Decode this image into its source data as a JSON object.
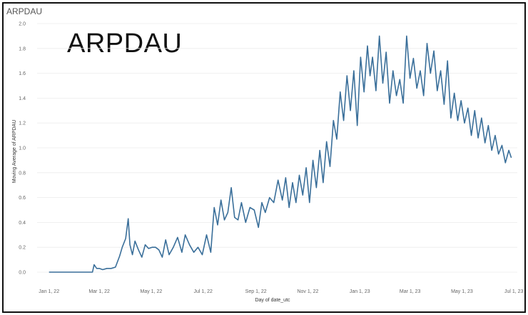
{
  "sheet": {
    "title": "ARPDAU"
  },
  "chart_data": {
    "type": "line",
    "title": "ARPDAU",
    "xlabel": "Day of date_utc",
    "ylabel": "Moving Average of ARPDAU",
    "x_ticks": [
      "Jan 1, 22",
      "Mar 1, 22",
      "May 1, 22",
      "Jul 1, 22",
      "Sep 1, 22",
      "Nov 1, 22",
      "Jan 1, 23",
      "Mar 1, 23",
      "May 1, 23",
      "Jul 1, 23"
    ],
    "y_ticks": [
      "0.0",
      "0.2",
      "0.4",
      "0.6",
      "0.8",
      "1.0",
      "1.2",
      "1.4",
      "1.6",
      "1.8",
      "2.0"
    ],
    "ylim": [
      0,
      2.0
    ],
    "xlim": [
      "2021-12-18",
      "2023-07-05"
    ],
    "grid": true,
    "legend": "none",
    "line_color": "#3a6f9a",
    "series": [
      {
        "x": [
          "2022-01-01",
          "2022-01-15",
          "2022-02-01",
          "2022-02-15",
          "2022-02-21",
          "2022-02-23",
          "2022-02-26",
          "2022-03-01",
          "2022-03-05",
          "2022-03-10",
          "2022-03-15",
          "2022-03-20",
          "2022-03-25",
          "2022-03-28",
          "2022-04-01",
          "2022-04-04",
          "2022-04-06",
          "2022-04-09",
          "2022-04-12",
          "2022-04-16",
          "2022-04-20",
          "2022-04-24",
          "2022-04-28",
          "2022-05-02",
          "2022-05-06",
          "2022-05-10",
          "2022-05-14",
          "2022-05-18",
          "2022-05-22",
          "2022-05-27",
          "2022-06-01",
          "2022-06-06",
          "2022-06-10",
          "2022-06-15",
          "2022-06-20",
          "2022-06-25",
          "2022-06-30",
          "2022-07-05",
          "2022-07-10",
          "2022-07-14",
          "2022-07-18",
          "2022-07-22",
          "2022-07-26",
          "2022-07-30",
          "2022-08-03",
          "2022-08-07",
          "2022-08-11",
          "2022-08-15",
          "2022-08-20",
          "2022-08-25",
          "2022-08-30",
          "2022-09-04",
          "2022-09-08",
          "2022-09-12",
          "2022-09-17",
          "2022-09-22",
          "2022-09-27",
          "2022-10-02",
          "2022-10-06",
          "2022-10-10",
          "2022-10-14",
          "2022-10-18",
          "2022-10-22",
          "2022-10-26",
          "2022-10-30",
          "2022-11-03",
          "2022-11-07",
          "2022-11-11",
          "2022-11-15",
          "2022-11-19",
          "2022-11-23",
          "2022-11-27",
          "2022-12-01",
          "2022-12-05",
          "2022-12-09",
          "2022-12-13",
          "2022-12-17",
          "2022-12-21",
          "2022-12-25",
          "2022-12-29",
          "2023-01-02",
          "2023-01-06",
          "2023-01-10",
          "2023-01-13",
          "2023-01-16",
          "2023-01-20",
          "2023-01-24",
          "2023-01-28",
          "2023-02-01",
          "2023-02-05",
          "2023-02-09",
          "2023-02-13",
          "2023-02-17",
          "2023-02-21",
          "2023-02-25",
          "2023-03-01",
          "2023-03-05",
          "2023-03-09",
          "2023-03-13",
          "2023-03-17",
          "2023-03-21",
          "2023-03-25",
          "2023-03-29",
          "2023-04-02",
          "2023-04-06",
          "2023-04-10",
          "2023-04-14",
          "2023-04-18",
          "2023-04-22",
          "2023-04-26",
          "2023-04-30",
          "2023-05-04",
          "2023-05-08",
          "2023-05-12",
          "2023-05-16",
          "2023-05-20",
          "2023-05-24",
          "2023-05-28",
          "2023-06-01",
          "2023-06-05",
          "2023-06-09",
          "2023-06-13",
          "2023-06-17",
          "2023-06-21",
          "2023-06-25",
          "2023-06-28"
        ],
        "y": [
          0.0,
          0.0,
          0.0,
          0.0,
          0.0,
          0.06,
          0.03,
          0.03,
          0.02,
          0.03,
          0.03,
          0.04,
          0.13,
          0.2,
          0.27,
          0.43,
          0.22,
          0.14,
          0.25,
          0.18,
          0.12,
          0.22,
          0.19,
          0.2,
          0.2,
          0.18,
          0.12,
          0.26,
          0.14,
          0.2,
          0.28,
          0.16,
          0.3,
          0.22,
          0.16,
          0.2,
          0.14,
          0.3,
          0.16,
          0.52,
          0.38,
          0.58,
          0.42,
          0.48,
          0.68,
          0.44,
          0.42,
          0.56,
          0.4,
          0.52,
          0.5,
          0.36,
          0.56,
          0.48,
          0.6,
          0.56,
          0.74,
          0.58,
          0.76,
          0.52,
          0.72,
          0.56,
          0.78,
          0.62,
          0.84,
          0.56,
          0.9,
          0.68,
          0.98,
          0.72,
          1.05,
          0.85,
          1.22,
          1.07,
          1.45,
          1.22,
          1.58,
          1.3,
          1.62,
          1.18,
          1.73,
          1.45,
          1.82,
          1.58,
          1.73,
          1.46,
          1.9,
          1.52,
          1.77,
          1.36,
          1.62,
          1.42,
          1.55,
          1.36,
          1.9,
          1.56,
          1.72,
          1.48,
          1.62,
          1.42,
          1.84,
          1.6,
          1.78,
          1.46,
          1.62,
          1.35,
          1.7,
          1.24,
          1.44,
          1.22,
          1.38,
          1.2,
          1.32,
          1.1,
          1.3,
          1.08,
          1.24,
          1.04,
          1.18,
          0.98,
          1.1,
          0.95,
          1.02,
          0.88,
          0.98,
          0.92
        ]
      }
    ]
  }
}
